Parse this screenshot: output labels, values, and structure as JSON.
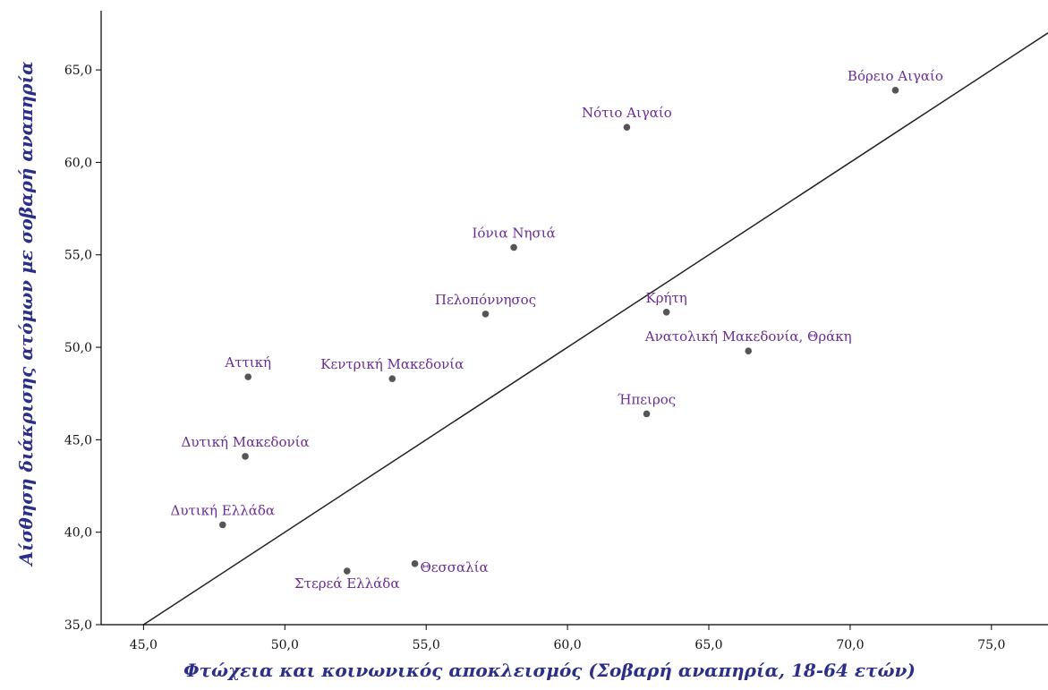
{
  "chart_data": {
    "type": "scatter",
    "title": "",
    "xlabel": "Φτώχεια και κοινωνικός αποκλεισμός  (Σοβαρή αναπηρία, 18-64 ετών)",
    "ylabel": "Αίσθηση διάκρισης ατόμων με σοβαρή αναπηρία",
    "xlim": [
      43.5,
      77.0
    ],
    "ylim": [
      35.0,
      68.2
    ],
    "xticks": [
      "45,0",
      "50,0",
      "55,0",
      "60,0",
      "65,0",
      "70,0",
      "75,0"
    ],
    "yticks": [
      "35,0",
      "40,0",
      "45,0",
      "50,0",
      "55,0",
      "60,0",
      "65,0"
    ],
    "grid": false,
    "reference_line": {
      "x0": 45.0,
      "y0": 35.0,
      "slope": 1.0
    },
    "colors": {
      "points": "#555555",
      "labels": "#6a2c91",
      "axis_titles": "#2c2f86",
      "reference_line": "#222222"
    },
    "points": [
      {
        "label": "Βόρειο Αιγαίο",
        "x": 71.6,
        "y": 63.9
      },
      {
        "label": "Νότιο Αιγαίο",
        "x": 62.1,
        "y": 61.9
      },
      {
        "label": "Ιόνια Νησιά",
        "x": 58.1,
        "y": 55.4
      },
      {
        "label": "Πελοπόννησος",
        "x": 57.1,
        "y": 51.8
      },
      {
        "label": "Κρήτη",
        "x": 63.5,
        "y": 51.9
      },
      {
        "label": "Ανατολική Μακεδονία, Θράκη",
        "x": 66.4,
        "y": 49.8
      },
      {
        "label": "Αττική",
        "x": 48.7,
        "y": 48.4
      },
      {
        "label": "Κεντρική Μακεδονία",
        "x": 53.8,
        "y": 48.3
      },
      {
        "label": "Ήπειρος",
        "x": 62.8,
        "y": 46.4
      },
      {
        "label": "Δυτική Μακεδονία",
        "x": 48.6,
        "y": 44.1
      },
      {
        "label": "Δυτική Ελλάδα",
        "x": 47.8,
        "y": 40.4
      },
      {
        "label": "Στερεά Ελλάδα",
        "x": 52.2,
        "y": 37.9
      },
      {
        "label": "Θεσσαλία",
        "x": 54.6,
        "y": 38.3
      }
    ]
  }
}
